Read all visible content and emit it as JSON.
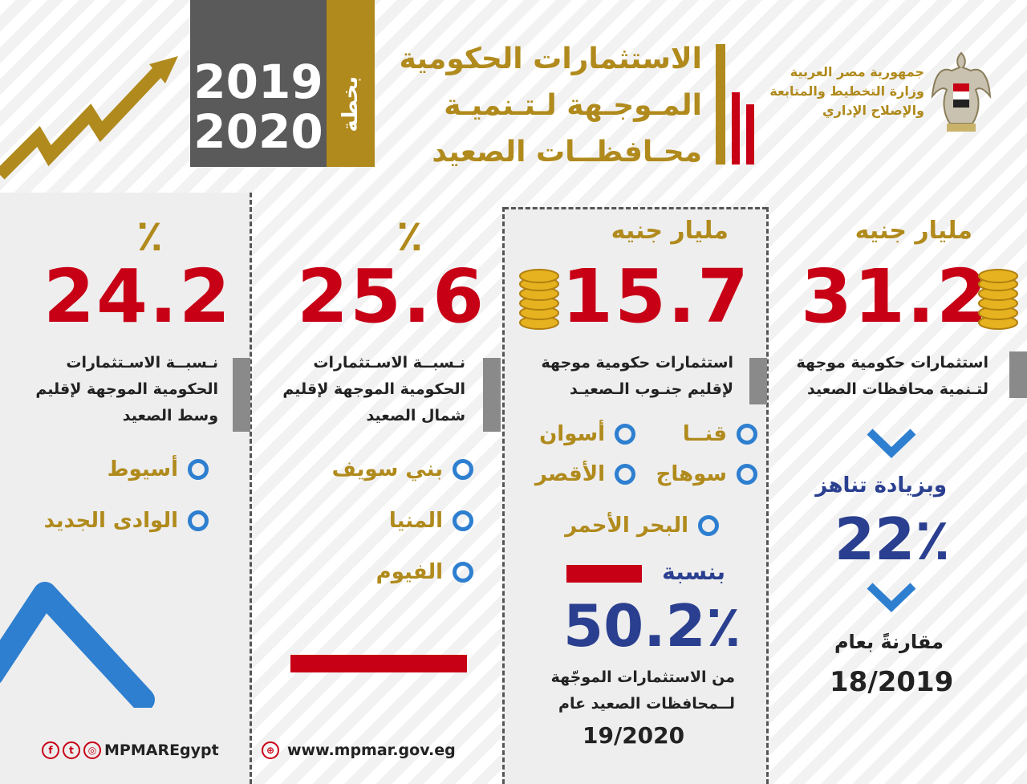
{
  "header": {
    "year_top": "2019",
    "year_bottom": "2020",
    "plan_label": "بخطة",
    "title_lines": [
      "الاستثمارات الحكومية",
      "المـوجـهة لـتـنميـة",
      "محـافظــات الصعيد"
    ],
    "ministry_lines": [
      "جمهورية مصر العربية",
      "وزارة التخطيط والمتابعة",
      "والإصلاح الإداري"
    ],
    "emblem_icon": "eagle-emblem-icon",
    "arrow_icon": "rising-arrow-icon"
  },
  "colors": {
    "gold": "#b08a1c",
    "red": "#c80016",
    "navy": "#2a3f8f",
    "circle_blue": "#2e7fd0",
    "grey": "#5a5a5a"
  },
  "panels": {
    "total": {
      "unit": "مليار جنيه",
      "value": "31.2",
      "desc_lines": [
        "استثمارات حكومية موجهة",
        "لتـنمية محافظات الصعيد"
      ],
      "increase_label": "وبزيادة تناهز",
      "increase_value": "22٪",
      "compare_label": "مقارنةً بعام",
      "compare_year": "18/2019"
    },
    "south": {
      "unit": "مليار جنيه",
      "value": "15.7",
      "desc_lines": [
        "استثمارات حكومية موجهة",
        "لإقليم جنـوب الـصعيـد"
      ],
      "governorates": [
        "قنــا",
        "أسوان",
        "سوهاج",
        "الأقصر",
        "البحر الأحمر"
      ],
      "share_label": "بنسبة",
      "share_value": "50.2٪",
      "share_desc_lines": [
        "من الاستثمارات الموجّهة",
        "لــمحافظات الصعيد عام"
      ],
      "share_year": "19/2020"
    },
    "north": {
      "value": "25.6",
      "pct_sign": "٪",
      "desc_lines": [
        "نـسبــة الاسـتثمارات",
        "الحكومية الموجهة لإقليم",
        "شمال الصعيد"
      ],
      "governorates": [
        "بني سويف",
        "المنيا",
        "الفيوم"
      ]
    },
    "middle": {
      "value": "24.2",
      "pct_sign": "٪",
      "desc_lines": [
        "نـسبــة الاسـتثمارات",
        "الحكومية الموجهة لإقليم",
        "وسط الصعيد"
      ],
      "governorates": [
        "أسيوط",
        "الوادى الجديد"
      ]
    }
  },
  "footer": {
    "website": "www.mpmar.gov.eg",
    "social_handle": "MPMAREgypt",
    "social_icons": [
      "facebook-icon",
      "twitter-icon",
      "instagram-icon"
    ],
    "web_icon": "dribbble-globe-icon"
  }
}
